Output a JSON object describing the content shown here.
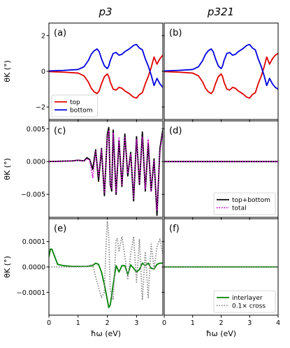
{
  "figure": {
    "column_titles": [
      "p3",
      "p321"
    ],
    "xlabel": "ħω (eV)",
    "ylabel": "θK (°)"
  },
  "chart_data": [
    {
      "panel": "(a)",
      "type": "line",
      "column": "p3",
      "row": 0,
      "xlim": [
        0,
        3.9
      ],
      "ylim": [
        -2.7,
        2.7
      ],
      "yticks": [
        -2,
        0,
        2
      ],
      "ytick_labels": [
        "−2",
        "0",
        "2"
      ],
      "xticks": [
        0,
        1,
        2,
        3
      ],
      "xtick_labels": [],
      "legend": "lower-left",
      "grid": false,
      "series": [
        {
          "name": "top",
          "color": "#e00000",
          "style": "solid",
          "x": [
            0,
            0.5,
            1.0,
            1.2,
            1.35,
            1.45,
            1.55,
            1.65,
            1.72,
            1.8,
            1.9,
            2.0,
            2.05,
            2.1,
            2.2,
            2.3,
            2.4,
            2.5,
            2.6,
            2.75,
            2.9,
            3.0,
            3.1,
            3.2,
            3.3,
            3.4,
            3.5,
            3.6,
            3.7,
            3.8,
            3.9
          ],
          "y": [
            -0.02,
            -0.05,
            -0.1,
            -0.25,
            -0.6,
            -0.95,
            -1.15,
            -1.25,
            -1.1,
            -0.7,
            -0.3,
            -0.15,
            -0.3,
            -0.6,
            -1.0,
            -1.05,
            -0.9,
            -0.95,
            -1.1,
            -1.25,
            -1.45,
            -1.5,
            -1.3,
            -1.2,
            -0.7,
            -0.3,
            0.2,
            0.8,
            0.4,
            0.7,
            0.9
          ]
        },
        {
          "name": "bottom",
          "color": "#0000e0",
          "style": "solid",
          "x": [
            0,
            0.5,
            1.0,
            1.2,
            1.35,
            1.45,
            1.55,
            1.65,
            1.72,
            1.8,
            1.9,
            2.0,
            2.05,
            2.1,
            2.2,
            2.3,
            2.4,
            2.5,
            2.6,
            2.75,
            2.9,
            3.0,
            3.1,
            3.2,
            3.3,
            3.4,
            3.5,
            3.6,
            3.7,
            3.8,
            3.9
          ],
          "y": [
            0.02,
            0.05,
            0.1,
            0.25,
            0.6,
            0.95,
            1.15,
            1.25,
            1.1,
            0.7,
            0.3,
            0.15,
            0.3,
            0.6,
            1.0,
            1.05,
            0.9,
            0.95,
            1.1,
            1.25,
            1.45,
            1.5,
            1.3,
            1.2,
            0.7,
            0.3,
            -0.2,
            -0.8,
            -0.4,
            -0.7,
            -0.9
          ]
        }
      ]
    },
    {
      "panel": "(b)",
      "type": "line",
      "column": "p321",
      "row": 0,
      "xlim": [
        0,
        4
      ],
      "ylim": [
        -2.7,
        2.7
      ],
      "yticks": [
        -2,
        0,
        2
      ],
      "ytick_labels": [],
      "xticks": [
        0,
        1,
        2,
        3,
        4
      ],
      "xtick_labels": [],
      "grid": false,
      "series": [
        {
          "name": "top",
          "color": "#e00000",
          "style": "solid",
          "x": [
            0,
            0.5,
            1.0,
            1.2,
            1.35,
            1.45,
            1.55,
            1.65,
            1.72,
            1.8,
            1.9,
            2.0,
            2.05,
            2.1,
            2.2,
            2.3,
            2.4,
            2.5,
            2.6,
            2.75,
            2.9,
            3.0,
            3.1,
            3.2,
            3.3,
            3.4,
            3.5,
            3.6,
            3.7,
            3.8,
            3.9,
            4.0
          ],
          "y": [
            -0.02,
            -0.05,
            -0.1,
            -0.25,
            -0.6,
            -0.95,
            -1.15,
            -1.25,
            -1.1,
            -0.7,
            -0.3,
            -0.15,
            -0.3,
            -0.6,
            -1.0,
            -1.05,
            -0.9,
            -0.95,
            -1.1,
            -1.25,
            -1.45,
            -1.5,
            -1.3,
            -1.2,
            -0.7,
            -0.3,
            0.2,
            0.8,
            0.4,
            0.7,
            0.9,
            1.0
          ]
        },
        {
          "name": "bottom",
          "color": "#0000e0",
          "style": "solid",
          "x": [
            0,
            0.5,
            1.0,
            1.2,
            1.35,
            1.45,
            1.55,
            1.65,
            1.72,
            1.8,
            1.9,
            2.0,
            2.05,
            2.1,
            2.2,
            2.3,
            2.4,
            2.5,
            2.6,
            2.75,
            2.9,
            3.0,
            3.1,
            3.2,
            3.3,
            3.4,
            3.5,
            3.6,
            3.7,
            3.8,
            3.9,
            4.0
          ],
          "y": [
            0.02,
            0.05,
            0.1,
            0.25,
            0.6,
            0.95,
            1.15,
            1.25,
            1.1,
            0.7,
            0.3,
            0.15,
            0.3,
            0.6,
            1.0,
            1.05,
            0.9,
            0.95,
            1.1,
            1.25,
            1.45,
            1.5,
            1.3,
            1.2,
            0.7,
            0.3,
            -0.2,
            -0.8,
            -0.4,
            -0.7,
            -0.9,
            -1.0
          ]
        }
      ]
    },
    {
      "panel": "(c)",
      "type": "line",
      "column": "p3",
      "row": 1,
      "xlim": [
        0,
        3.9
      ],
      "ylim": [
        -0.0085,
        0.0062
      ],
      "yticks": [
        -0.005,
        0,
        0.005
      ],
      "ytick_labels": [
        "−0.005",
        "0.000",
        "0.005"
      ],
      "xticks": [
        0,
        1,
        2,
        3
      ],
      "xtick_labels": [],
      "grid": false,
      "series": [
        {
          "name": "top+bottom",
          "color": "#000000",
          "style": "solid",
          "x": [
            0,
            0.8,
            1.0,
            1.2,
            1.3,
            1.4,
            1.5,
            1.6,
            1.7,
            1.8,
            1.9,
            2.0,
            2.05,
            2.1,
            2.15,
            2.2,
            2.3,
            2.4,
            2.5,
            2.6,
            2.7,
            2.8,
            2.9,
            3.0,
            3.1,
            3.2,
            3.3,
            3.4,
            3.5,
            3.6,
            3.7,
            3.8,
            3.9
          ],
          "y": [
            0,
            0.0001,
            0.0002,
            0.0001,
            0.0006,
            0.0003,
            -0.0012,
            0.0018,
            -0.003,
            0.002,
            -0.0052,
            0.0042,
            0.0052,
            -0.0035,
            -0.0045,
            0.0048,
            -0.005,
            0.0032,
            -0.0038,
            0.0042,
            -0.0022,
            0.0014,
            -0.006,
            0.0038,
            -0.0035,
            0.0045,
            -0.0045,
            0.0028,
            -0.0045,
            0.0004,
            -0.0082,
            0.002,
            0.0048
          ]
        },
        {
          "name": "total",
          "color": "#cc00cc",
          "style": "dotted",
          "x": [
            0,
            0.8,
            1.0,
            1.2,
            1.3,
            1.4,
            1.5,
            1.6,
            1.7,
            1.8,
            1.9,
            2.0,
            2.05,
            2.1,
            2.15,
            2.2,
            2.3,
            2.4,
            2.5,
            2.6,
            2.7,
            2.8,
            2.9,
            3.0,
            3.1,
            3.2,
            3.3,
            3.4,
            3.5,
            3.6,
            3.7,
            3.8,
            3.9
          ],
          "y": [
            0,
            0.0001,
            0.0002,
            0.0001,
            0.0004,
            0.0002,
            -0.0025,
            0.0015,
            -0.0022,
            0.0018,
            -0.0048,
            0.0035,
            0.0048,
            -0.0032,
            -0.0042,
            0.0044,
            -0.0046,
            0.0036,
            -0.0035,
            0.0038,
            -0.0018,
            0.0012,
            -0.0056,
            0.0034,
            -0.0032,
            0.0038,
            -0.0042,
            0.0034,
            -0.0045,
            0.0002,
            -0.0075,
            0.0015,
            0.0045
          ]
        }
      ]
    },
    {
      "panel": "(d)",
      "type": "line",
      "column": "p321",
      "row": 1,
      "xlim": [
        0,
        4
      ],
      "ylim": [
        -0.0085,
        0.0062
      ],
      "yticks": [
        -0.005,
        0,
        0.005
      ],
      "ytick_labels": [],
      "xticks": [
        0,
        1,
        2,
        3,
        4
      ],
      "xtick_labels": [],
      "legend": "lower-right",
      "grid": false,
      "series": [
        {
          "name": "top+bottom",
          "color": "#000000",
          "style": "solid",
          "x": [
            0,
            4
          ],
          "y": [
            0,
            0
          ]
        },
        {
          "name": "total",
          "color": "#cc00cc",
          "style": "dotted",
          "x": [
            0,
            4
          ],
          "y": [
            0,
            0
          ]
        }
      ]
    },
    {
      "panel": "(e)",
      "type": "line",
      "column": "p3",
      "row": 2,
      "xlim": [
        0,
        3.9
      ],
      "ylim": [
        -0.00019,
        0.00019
      ],
      "yticks": [
        -0.0001,
        0,
        0.0001
      ],
      "ytick_labels": [
        "−0.0001",
        "0.0000",
        "0.0001"
      ],
      "xticks": [
        0,
        1,
        2,
        3
      ],
      "xtick_labels": [
        "0",
        "1",
        "2",
        "3"
      ],
      "grid": false,
      "series": [
        {
          "name": "interlayer",
          "color": "#008000",
          "style": "solid",
          "x": [
            0,
            0.05,
            0.1,
            0.2,
            0.3,
            0.5,
            0.8,
            1.0,
            1.3,
            1.5,
            1.6,
            1.7,
            1.8,
            1.9,
            2.0,
            2.05,
            2.1,
            2.2,
            2.3,
            2.4,
            2.5,
            2.6,
            2.7,
            2.8,
            2.9,
            3.0,
            3.1,
            3.2,
            3.3,
            3.4,
            3.5,
            3.6,
            3.7,
            3.8,
            3.9
          ],
          "y": [
            4e-05,
            7e-05,
            7e-05,
            4e-05,
            1e-05,
            5e-06,
            2e-06,
            2e-06,
            2e-06,
            5e-06,
            1.5e-05,
            1e-05,
            -2e-05,
            -7e-05,
            -0.00013,
            -0.00016,
            -0.00015,
            -7e-05,
            5e-06,
            -2e-05,
            5e-06,
            5e-06,
            -3e-05,
            8e-06,
            -5e-06,
            -2e-05,
            -1e-05,
            1.5e-05,
            5e-06,
            1.5e-05,
            -5e-06,
            -8e-06,
            1e-05,
            1.5e-05,
            1.5e-05
          ]
        },
        {
          "name": "0.1× cross",
          "color": "#888888",
          "style": "dotted",
          "x": [
            0,
            0.5,
            1.0,
            1.3,
            1.5,
            1.6,
            1.7,
            1.8,
            1.9,
            1.95,
            2.0,
            2.05,
            2.1,
            2.2,
            2.3,
            2.35,
            2.4,
            2.5,
            2.6,
            2.7,
            2.8,
            2.9,
            3.0,
            3.1,
            3.2,
            3.3,
            3.4,
            3.5,
            3.6,
            3.7,
            3.8,
            3.9
          ],
          "y": [
            0,
            0,
            0,
            2e-06,
            1e-05,
            -4e-05,
            -8e-05,
            -0.00012,
            -0.0001,
            7e-05,
            0.00018,
            0.00012,
            -9e-05,
            -0.00013,
            0.00011,
            0.00011,
            6e-05,
            0.00012,
            4e-05,
            -5e-05,
            5e-05,
            0.00012,
            -6e-05,
            0.00011,
            -0.00013,
            6e-05,
            -0.00012,
            9e-05,
            -1e-05,
            8e-05,
            0.00011,
            5e-05
          ]
        }
      ]
    },
    {
      "panel": "(f)",
      "type": "line",
      "column": "p321",
      "row": 2,
      "xlim": [
        0,
        4
      ],
      "ylim": [
        -0.00019,
        0.00019
      ],
      "yticks": [
        -0.0001,
        0,
        0.0001
      ],
      "ytick_labels": [],
      "xticks": [
        0,
        1,
        2,
        3,
        4
      ],
      "xtick_labels": [
        "0",
        "1",
        "2",
        "3",
        "4"
      ],
      "legend": "lower-right",
      "grid": false,
      "series": [
        {
          "name": "interlayer",
          "color": "#008000",
          "style": "solid",
          "x": [
            0,
            4
          ],
          "y": [
            0,
            0
          ]
        },
        {
          "name": "0.1× cross",
          "color": "#888888",
          "style": "dotted",
          "x": [
            0,
            4
          ],
          "y": [
            0,
            0
          ]
        }
      ]
    }
  ]
}
